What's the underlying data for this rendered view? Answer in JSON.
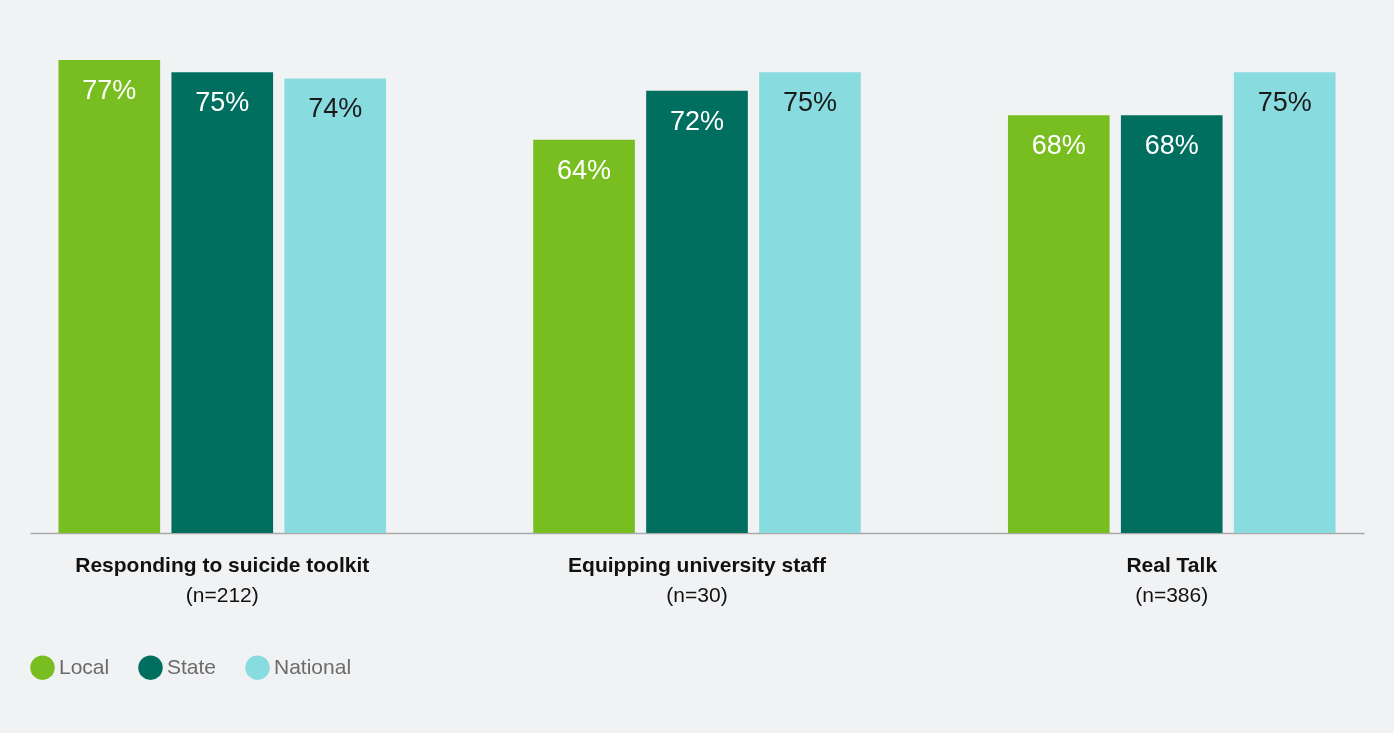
{
  "chart_data": {
    "type": "bar",
    "categories": [
      "Responding to suicide toolkit\n(n=212)",
      "Equipping university staff\n(n=30)",
      "Real Talk\n(n=386)"
    ],
    "series": [
      {
        "name": "Local",
        "color": "#78be20",
        "values": [
          77,
          64,
          68
        ],
        "value_labels": [
          "77%",
          "64%",
          "68%"
        ]
      },
      {
        "name": "State",
        "color": "#006f5f",
        "values": [
          75,
          72,
          68
        ],
        "value_labels": [
          "75%",
          "72%",
          "68%"
        ]
      },
      {
        "name": "National",
        "color": "#88dbdf",
        "values": [
          74,
          75,
          75
        ],
        "value_labels": [
          "74%",
          "75%",
          "75%"
        ]
      }
    ],
    "legend": "bottom left",
    "grid": false
  }
}
